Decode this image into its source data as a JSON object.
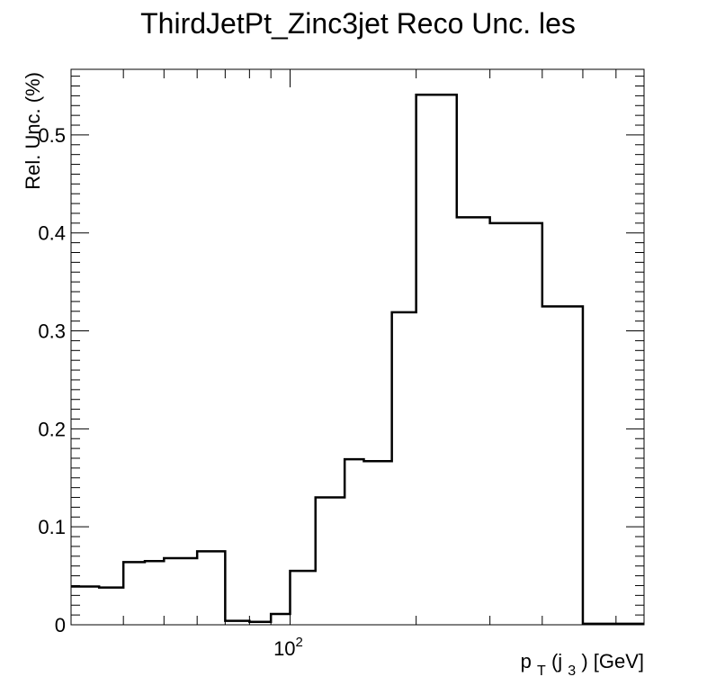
{
  "chart_data": {
    "type": "histogram-step",
    "title": "ThirdJetPt_Zinc3jet Reco Unc. les",
    "ylabel": "Rel. Unc. (%)",
    "xlabel": {
      "p": "p",
      "sub_t": "T",
      "open": "(j",
      "sub_3": "3",
      "close": ")  [GeV]"
    },
    "x_scale": "log",
    "xlim": [
      30,
      700
    ],
    "ylim": [
      0,
      0.567
    ],
    "y_ticks": [
      "0",
      "0.1",
      "0.2",
      "0.3",
      "0.4",
      "0.5"
    ],
    "y_tick_values": [
      0,
      0.1,
      0.2,
      0.3,
      0.4,
      0.5
    ],
    "x_tick_label": {
      "base": "10",
      "exp": "2"
    },
    "x_tick_label_value": 100,
    "bin_edges": [
      30,
      35,
      40,
      45,
      50,
      60,
      70,
      80,
      90,
      100,
      115,
      135,
      150,
      175,
      200,
      250,
      300,
      400,
      500,
      700
    ],
    "values": [
      0.039,
      0.038,
      0.064,
      0.065,
      0.068,
      0.075,
      0.004,
      0.003,
      0.011,
      0.055,
      0.13,
      0.169,
      0.167,
      0.319,
      0.541,
      0.416,
      0.41,
      0.325,
      0.001
    ],
    "line_color": "#000000"
  }
}
